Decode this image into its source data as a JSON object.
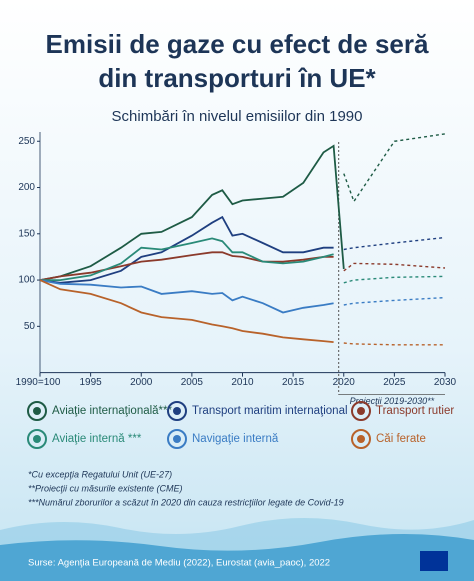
{
  "chart_data": {
    "type": "line",
    "title": [
      "Emisii de gaze cu efect de seră",
      "din transporturi în UE*"
    ],
    "subtitle": "Schimbări în nivelul emisiilor din 1990",
    "x": [
      1990,
      1992,
      1995,
      1998,
      2000,
      2002,
      2005,
      2007,
      2008,
      2009,
      2010,
      2012,
      2014,
      2016,
      2018,
      2019,
      2020
    ],
    "projection_x": [
      2020,
      2021,
      2025,
      2030
    ],
    "projection_label": "Proiecţii 2019-2030**",
    "xlim": [
      1990,
      2030
    ],
    "xticks": [
      {
        "value": 1990,
        "label": "1990=100"
      },
      1995,
      2000,
      2005,
      2010,
      2015,
      2020,
      2025,
      2030
    ],
    "ylim": [
      0,
      260
    ],
    "yticks": [
      50,
      100,
      150,
      200,
      250
    ],
    "series": [
      {
        "name": "Aviaţie internaţională***",
        "color": "#1e5b45",
        "values": [
          100,
          104,
          115,
          135,
          150,
          152,
          168,
          192,
          197,
          182,
          186,
          188,
          190,
          205,
          238,
          245,
          112
        ],
        "projection": [
          215,
          185,
          250,
          258
        ]
      },
      {
        "name": "Transport maritim internaţional",
        "color": "#1f3f80",
        "values": [
          100,
          97,
          100,
          110,
          125,
          130,
          148,
          162,
          168,
          148,
          150,
          140,
          130,
          130,
          135,
          135,
          null
        ],
        "projection": [
          133,
          135,
          140,
          146
        ]
      },
      {
        "name": "Transport rutier",
        "color": "#8b3a2b",
        "values": [
          100,
          104,
          108,
          115,
          120,
          122,
          127,
          130,
          130,
          126,
          125,
          120,
          120,
          122,
          125,
          125,
          null
        ],
        "projection": [
          110,
          118,
          117,
          113
        ]
      },
      {
        "name": "Aviaţie internă ***",
        "color": "#2a8a78",
        "values": [
          100,
          100,
          105,
          118,
          135,
          133,
          140,
          145,
          142,
          130,
          130,
          120,
          118,
          120,
          125,
          128,
          null
        ],
        "projection": [
          97,
          100,
          103,
          104
        ]
      },
      {
        "name": "Navigaţie internă",
        "color": "#3a7cc4",
        "values": [
          100,
          96,
          95,
          92,
          93,
          85,
          88,
          85,
          86,
          78,
          82,
          75,
          65,
          70,
          73,
          75,
          null
        ],
        "projection": [
          73,
          75,
          78,
          81
        ]
      },
      {
        "name": "Căi ferate",
        "color": "#b8622a",
        "values": [
          100,
          90,
          85,
          75,
          65,
          60,
          57,
          52,
          50,
          48,
          45,
          42,
          38,
          36,
          34,
          33,
          null
        ],
        "projection": [
          32,
          31,
          30,
          30
        ]
      }
    ],
    "footnotes": [
      "*Cu excepţia Regatului Unit (UE-27)",
      "**Proiecţii cu măsurile existente (CME)",
      "***Numărul zborurilor a scăzut în 2020 din cauza restricţiilor legate de Covid-19"
    ],
    "source": "Surse: Agenţia Europeană de Mediu (2022), Eurostat (avia_paoc), 2022"
  }
}
